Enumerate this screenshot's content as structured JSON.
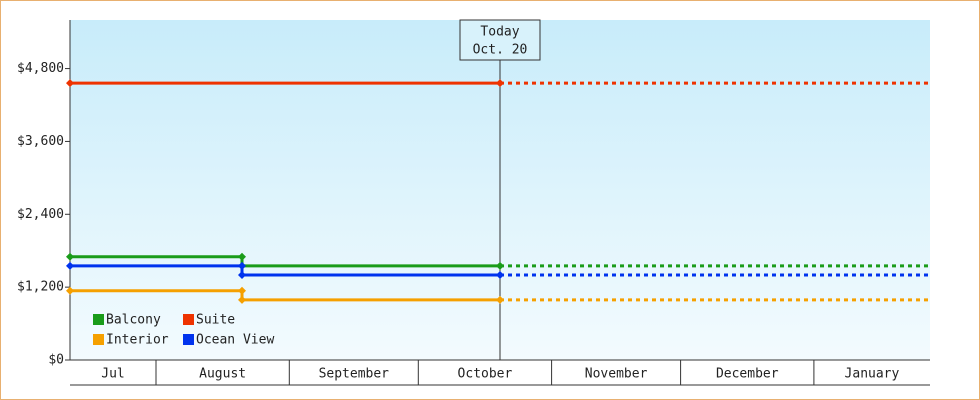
{
  "chart_data": {
    "type": "step-line",
    "xlim": [
      11,
      211
    ],
    "xticks": [
      {
        "value": 0,
        "label": "Jul"
      },
      {
        "value": 31,
        "label": "August"
      },
      {
        "value": 62,
        "label": "September"
      },
      {
        "value": 92,
        "label": "October"
      },
      {
        "value": 123,
        "label": "November"
      },
      {
        "value": 153,
        "label": "December"
      },
      {
        "value": 184,
        "label": "January"
      }
    ],
    "ylim": [
      0,
      5600
    ],
    "yticks": [
      {
        "value": 0,
        "label": "$0"
      },
      {
        "value": 1200,
        "label": "$1,200"
      },
      {
        "value": 2400,
        "label": "$2,400"
      },
      {
        "value": 3600,
        "label": "$3,600"
      },
      {
        "value": 4800,
        "label": "$4,800"
      }
    ],
    "today": {
      "x": 111,
      "label": [
        "Today",
        "Oct. 20"
      ]
    },
    "projection": true,
    "series": [
      {
        "name": "Balcony",
        "color": "#1a9c1a",
        "x": [
          11,
          51,
          51,
          111
        ],
        "values": [
          1700,
          1700,
          1550,
          1550
        ]
      },
      {
        "name": "Suite",
        "color": "#ee3300",
        "x": [
          11,
          111
        ],
        "values": [
          4560,
          4560
        ]
      },
      {
        "name": "Interior",
        "color": "#f5a000",
        "x": [
          11,
          51,
          51,
          111
        ],
        "values": [
          1140,
          1140,
          990,
          990
        ]
      },
      {
        "name": "Ocean View",
        "color": "#0033ee",
        "x": [
          11,
          51,
          51,
          111
        ],
        "values": [
          1550,
          1550,
          1400,
          1400
        ]
      }
    ]
  }
}
